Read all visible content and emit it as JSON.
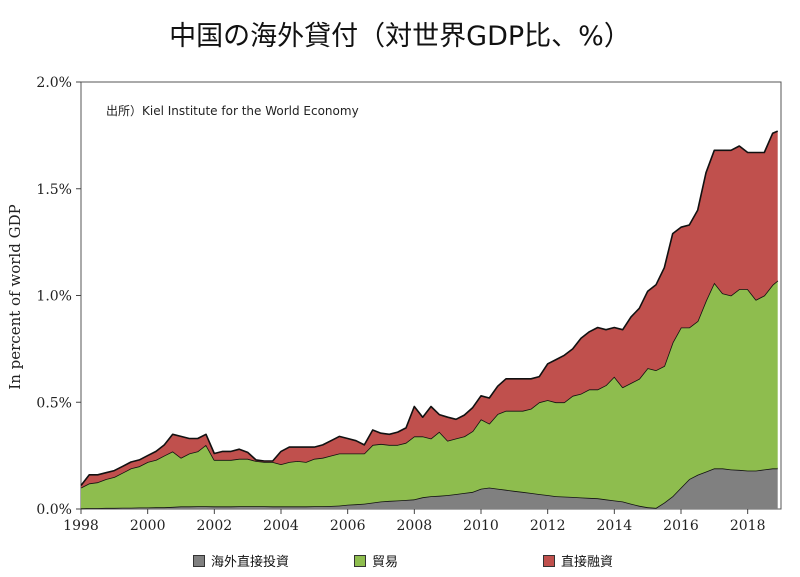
{
  "chart_data": {
    "type": "area",
    "stacked": true,
    "title": "中国の海外貸付（対世界GDP比、%）",
    "ylabel": "In percent of world GDP",
    "annotation": "出所）Kiel Institute for the World Economy",
    "xlim": [
      1998,
      2019
    ],
    "ylim": [
      0,
      2.0
    ],
    "x_ticks": [
      1998,
      2000,
      2002,
      2004,
      2006,
      2008,
      2010,
      2012,
      2014,
      2016,
      2018
    ],
    "x_tick_labels": [
      "1998",
      "2000",
      "2002",
      "2004",
      "2006",
      "2008",
      "2010",
      "2012",
      "2014",
      "2016",
      "2018"
    ],
    "y_ticks": [
      0,
      0.5,
      1.0,
      1.5,
      2.0
    ],
    "y_tick_labels": [
      "0.0%",
      "0.5%",
      "1.0%",
      "1.5%",
      "2.0%"
    ],
    "legend_position": "bottom",
    "x": [
      1998.0,
      1998.25,
      1998.5,
      1998.75,
      1999.0,
      1999.25,
      1999.5,
      1999.75,
      2000.0,
      2000.25,
      2000.5,
      2000.75,
      2001.0,
      2001.25,
      2001.5,
      2001.75,
      2002.0,
      2002.25,
      2002.5,
      2002.75,
      2003.0,
      2003.25,
      2003.5,
      2003.75,
      2004.0,
      2004.25,
      2004.5,
      2004.75,
      2005.0,
      2005.25,
      2005.5,
      2005.75,
      2006.0,
      2006.25,
      2006.5,
      2006.75,
      2007.0,
      2007.25,
      2007.5,
      2007.75,
      2008.0,
      2008.25,
      2008.5,
      2008.75,
      2009.0,
      2009.25,
      2009.5,
      2009.75,
      2010.0,
      2010.25,
      2010.5,
      2010.75,
      2011.0,
      2011.25,
      2011.5,
      2011.75,
      2012.0,
      2012.25,
      2012.5,
      2012.75,
      2013.0,
      2013.25,
      2013.5,
      2013.75,
      2014.0,
      2014.25,
      2014.5,
      2014.75,
      2015.0,
      2015.25,
      2015.5,
      2015.75,
      2016.0,
      2016.25,
      2016.5,
      2016.75,
      2017.0,
      2017.25,
      2017.5,
      2017.75,
      2018.0,
      2018.25,
      2018.5,
      2018.75,
      2018.9
    ],
    "series": [
      {
        "name": "海外直接投資",
        "color": "#808080",
        "values": [
          0.003,
          0.004,
          0.004,
          0.005,
          0.005,
          0.006,
          0.006,
          0.007,
          0.007,
          0.008,
          0.008,
          0.01,
          0.012,
          0.012,
          0.013,
          0.013,
          0.012,
          0.012,
          0.012,
          0.013,
          0.013,
          0.013,
          0.013,
          0.012,
          0.012,
          0.012,
          0.012,
          0.012,
          0.013,
          0.013,
          0.014,
          0.016,
          0.02,
          0.022,
          0.025,
          0.03,
          0.035,
          0.038,
          0.04,
          0.042,
          0.045,
          0.055,
          0.06,
          0.062,
          0.065,
          0.07,
          0.075,
          0.08,
          0.095,
          0.1,
          0.095,
          0.09,
          0.085,
          0.08,
          0.075,
          0.07,
          0.065,
          0.06,
          0.058,
          0.056,
          0.054,
          0.052,
          0.05,
          0.045,
          0.04,
          0.035,
          0.025,
          0.015,
          0.008,
          0.005,
          0.03,
          0.06,
          0.1,
          0.14,
          0.16,
          0.175,
          0.19,
          0.19,
          0.185,
          0.183,
          0.18,
          0.18,
          0.185,
          0.19,
          0.19
        ]
      },
      {
        "name": "貿易",
        "color": "#8ebd4e",
        "values": [
          0.097,
          0.116,
          0.121,
          0.135,
          0.145,
          0.164,
          0.184,
          0.193,
          0.213,
          0.222,
          0.242,
          0.26,
          0.228,
          0.248,
          0.257,
          0.287,
          0.218,
          0.218,
          0.218,
          0.222,
          0.222,
          0.212,
          0.207,
          0.208,
          0.198,
          0.208,
          0.213,
          0.208,
          0.222,
          0.227,
          0.236,
          0.244,
          0.24,
          0.238,
          0.235,
          0.27,
          0.27,
          0.262,
          0.26,
          0.268,
          0.295,
          0.285,
          0.27,
          0.3,
          0.255,
          0.26,
          0.265,
          0.285,
          0.325,
          0.3,
          0.35,
          0.37,
          0.375,
          0.38,
          0.395,
          0.43,
          0.445,
          0.44,
          0.442,
          0.474,
          0.486,
          0.508,
          0.51,
          0.535,
          0.58,
          0.535,
          0.565,
          0.595,
          0.652,
          0.645,
          0.64,
          0.72,
          0.75,
          0.71,
          0.72,
          0.8,
          0.87,
          0.82,
          0.815,
          0.847,
          0.85,
          0.8,
          0.815,
          0.86,
          0.88
        ]
      },
      {
        "name": "直接融資",
        "color": "#c0504d",
        "values": [
          0.01,
          0.04,
          0.035,
          0.03,
          0.03,
          0.03,
          0.03,
          0.03,
          0.03,
          0.04,
          0.05,
          0.08,
          0.1,
          0.07,
          0.06,
          0.05,
          0.03,
          0.04,
          0.04,
          0.045,
          0.03,
          0.005,
          0.005,
          0.005,
          0.06,
          0.07,
          0.065,
          0.07,
          0.055,
          0.06,
          0.07,
          0.08,
          0.07,
          0.06,
          0.04,
          0.07,
          0.05,
          0.05,
          0.06,
          0.07,
          0.14,
          0.09,
          0.15,
          0.08,
          0.11,
          0.09,
          0.1,
          0.11,
          0.11,
          0.12,
          0.13,
          0.15,
          0.15,
          0.15,
          0.14,
          0.12,
          0.17,
          0.2,
          0.22,
          0.22,
          0.26,
          0.27,
          0.29,
          0.26,
          0.23,
          0.27,
          0.31,
          0.33,
          0.36,
          0.4,
          0.46,
          0.51,
          0.47,
          0.48,
          0.52,
          0.6,
          0.62,
          0.67,
          0.68,
          0.67,
          0.64,
          0.69,
          0.67,
          0.71,
          0.7
        ]
      }
    ]
  }
}
